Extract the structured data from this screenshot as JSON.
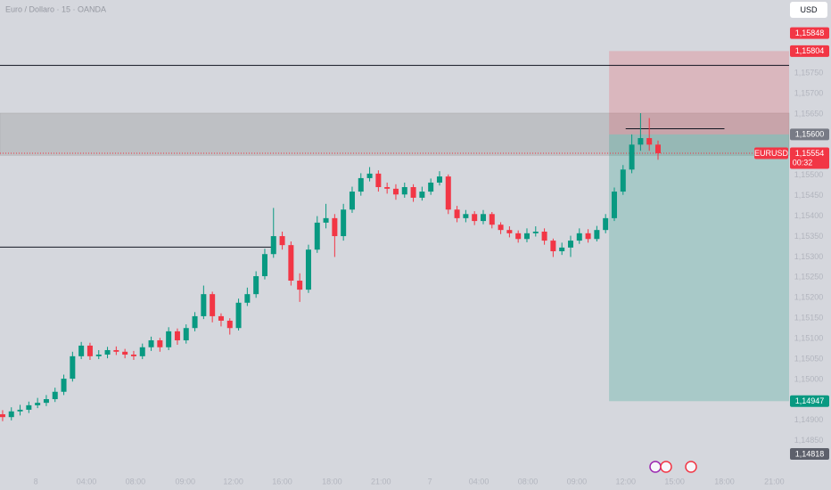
{
  "header": {
    "title": "Euro / Dollaro · 15 · OANDA",
    "currency_button": "USD"
  },
  "chart_data": {
    "type": "candlestick",
    "up_color": "#089981",
    "down_color": "#f23645",
    "ylim": [
      1.14795,
      1.15929
    ],
    "xlim": [
      -0.3,
      90
    ],
    "open": [
      1.14915,
      1.14908,
      1.14922,
      1.14926,
      1.14937,
      1.14943,
      1.14952,
      1.1497,
      1.15002,
      1.15057,
      1.15083,
      1.15057,
      1.15061,
      1.15072,
      1.15068,
      1.15061,
      1.15057,
      1.15079,
      1.15096,
      1.15079,
      1.15118,
      1.15096,
      1.15126,
      1.15155,
      1.15209,
      1.15155,
      1.15144,
      1.15126,
      1.15188,
      1.15209,
      1.15253,
      1.15307,
      1.15351,
      1.15329,
      1.15242,
      1.1522,
      1.15318,
      1.15384,
      1.15395,
      1.15351,
      1.15416,
      1.1546,
      1.15493,
      1.15504,
      1.15471,
      1.15467,
      1.15453,
      1.15471,
      1.15445,
      1.1546,
      1.15482,
      1.15497,
      1.15416,
      1.15395,
      1.15405,
      1.15388,
      1.15405,
      1.15379,
      1.15366,
      1.15358,
      1.15344,
      1.15358,
      1.15362,
      1.1534,
      1.15314,
      1.15323,
      1.1534,
      1.15358,
      1.15344,
      1.15366,
      1.15395,
      1.1546,
      1.15514,
      1.15575,
      1.15591,
      1.15575
    ],
    "high": [
      1.14925,
      1.14932,
      1.14938,
      1.14946,
      1.14955,
      1.14962,
      1.1498,
      1.15012,
      1.15068,
      1.15092,
      1.1509,
      1.15072,
      1.1508,
      1.15081,
      1.15075,
      1.1507,
      1.15088,
      1.15105,
      1.15102,
      1.15128,
      1.15125,
      1.15135,
      1.15165,
      1.1523,
      1.15215,
      1.15162,
      1.1515,
      1.15198,
      1.15225,
      1.15265,
      1.1532,
      1.1542,
      1.15362,
      1.15338,
      1.1526,
      1.1533,
      1.154,
      1.1543,
      1.15405,
      1.1543,
      1.15472,
      1.15505,
      1.1552,
      1.15512,
      1.15482,
      1.15478,
      1.15482,
      1.15478,
      1.15472,
      1.15492,
      1.1551,
      1.15502,
      1.15425,
      1.15415,
      1.15412,
      1.15415,
      1.1541,
      1.15385,
      1.15375,
      1.15365,
      1.1537,
      1.15375,
      1.1537,
      1.15345,
      1.15335,
      1.15352,
      1.1537,
      1.15368,
      1.15376,
      1.15405,
      1.1547,
      1.15525,
      1.156,
      1.15652,
      1.1564,
      1.15585
    ],
    "low": [
      1.14898,
      1.149,
      1.14912,
      1.14918,
      1.1493,
      1.14935,
      1.14945,
      1.14962,
      1.14995,
      1.1505,
      1.15048,
      1.1505,
      1.15052,
      1.1506,
      1.15052,
      1.15048,
      1.1505,
      1.1507,
      1.15068,
      1.15072,
      1.15085,
      1.15088,
      1.15118,
      1.15148,
      1.1514,
      1.1513,
      1.1511,
      1.1512,
      1.1518,
      1.152,
      1.15245,
      1.15298,
      1.15318,
      1.1523,
      1.1519,
      1.15212,
      1.1531,
      1.1537,
      1.153,
      1.1534,
      1.15408,
      1.1545,
      1.15485,
      1.1546,
      1.15455,
      1.1544,
      1.15445,
      1.15435,
      1.15438,
      1.15452,
      1.15475,
      1.15405,
      1.15385,
      1.15385,
      1.15378,
      1.1538,
      1.1537,
      1.15356,
      1.15348,
      1.15335,
      1.15336,
      1.1535,
      1.1533,
      1.153,
      1.15305,
      1.153,
      1.15332,
      1.15335,
      1.15338,
      1.15358,
      1.15388,
      1.15452,
      1.15505,
      1.1556,
      1.1556,
      1.15538
    ],
    "close": [
      1.14908,
      1.14922,
      1.14926,
      1.14937,
      1.14943,
      1.14952,
      1.1497,
      1.15002,
      1.15057,
      1.15083,
      1.15057,
      1.15061,
      1.15072,
      1.15068,
      1.15061,
      1.15057,
      1.15079,
      1.15096,
      1.15079,
      1.15118,
      1.15096,
      1.15126,
      1.15155,
      1.15209,
      1.15155,
      1.15144,
      1.15126,
      1.15188,
      1.15209,
      1.15253,
      1.15307,
      1.15351,
      1.15329,
      1.15242,
      1.1522,
      1.15318,
      1.15384,
      1.15395,
      1.15351,
      1.15416,
      1.1546,
      1.15493,
      1.15504,
      1.15471,
      1.15467,
      1.15453,
      1.15471,
      1.15445,
      1.1546,
      1.15482,
      1.15497,
      1.15416,
      1.15395,
      1.15405,
      1.15388,
      1.15405,
      1.15379,
      1.15366,
      1.15358,
      1.15344,
      1.15358,
      1.15362,
      1.1534,
      1.15314,
      1.15323,
      1.1534,
      1.15358,
      1.15344,
      1.15366,
      1.15395,
      1.1546,
      1.15514,
      1.15575,
      1.15591,
      1.15575,
      1.15554
    ],
    "yticks": [
      {
        "value": 1.1575,
        "label": "1,15750"
      },
      {
        "value": 1.157,
        "label": "1,15700"
      },
      {
        "value": 1.1565,
        "label": "1,15650"
      },
      {
        "value": 1.155,
        "label": "1,15500"
      },
      {
        "value": 1.1545,
        "label": "1,15450"
      },
      {
        "value": 1.154,
        "label": "1,15400"
      },
      {
        "value": 1.1535,
        "label": "1,15350"
      },
      {
        "value": 1.153,
        "label": "1,15300"
      },
      {
        "value": 1.1525,
        "label": "1,15250"
      },
      {
        "value": 1.152,
        "label": "1,15200"
      },
      {
        "value": 1.1515,
        "label": "1,15150"
      },
      {
        "value": 1.151,
        "label": "1,15100"
      },
      {
        "value": 1.1505,
        "label": "1,15050"
      },
      {
        "value": 1.15,
        "label": "1,15000"
      },
      {
        "value": 1.149,
        "label": "1,14900"
      },
      {
        "value": 1.1485,
        "label": "1,14850"
      }
    ],
    "xticks": [
      {
        "value": 3.8,
        "label": "8"
      },
      {
        "value": 9.6,
        "label": "04:00"
      },
      {
        "value": 15.2,
        "label": "08:00"
      },
      {
        "value": 20.9,
        "label": "09:00"
      },
      {
        "value": 26.4,
        "label": "12:00"
      },
      {
        "value": 32,
        "label": "16:00"
      },
      {
        "value": 37.7,
        "label": "18:00"
      },
      {
        "value": 43.3,
        "label": "21:00"
      },
      {
        "value": 48.9,
        "label": "7"
      },
      {
        "value": 54.5,
        "label": "04:00"
      },
      {
        "value": 60.1,
        "label": "08:00"
      },
      {
        "value": 65.7,
        "label": "09:00"
      },
      {
        "value": 71.3,
        "label": "12:00"
      },
      {
        "value": 76.9,
        "label": "15:00"
      },
      {
        "value": 82.6,
        "label": "18:00"
      },
      {
        "value": 88.3,
        "label": "21:00"
      }
    ],
    "horizontal_lines": [
      {
        "value": 1.15769,
        "end": 90
      },
      {
        "value": 1.15324,
        "end": 30.8
      },
      {
        "value": 1.15614,
        "start": 71.3,
        "end": 82.6
      }
    ],
    "zone": {
      "top": 1.15652,
      "bottom": 1.15549
    },
    "position": {
      "start": 69.4,
      "stop": 1.15804,
      "entry": 1.156,
      "target": 1.14947
    },
    "price_labels": [
      {
        "value": 1.15848,
        "label": "1,15848",
        "color": "#f23645"
      },
      {
        "value": 1.15804,
        "label": "1,15804",
        "color": "#f23645"
      },
      {
        "value": 1.156,
        "label": "1,15600",
        "color": "#787b86"
      },
      {
        "value": 1.14947,
        "label": "1,14947",
        "color": "#089981"
      },
      {
        "value": 1.14818,
        "label": "1,14818",
        "color": "#5d606b"
      }
    ],
    "current": {
      "symbol": "EURUSD",
      "value": 1.15554,
      "label": "1,15554",
      "countdown": "00:32",
      "color": "#f23645"
    }
  }
}
